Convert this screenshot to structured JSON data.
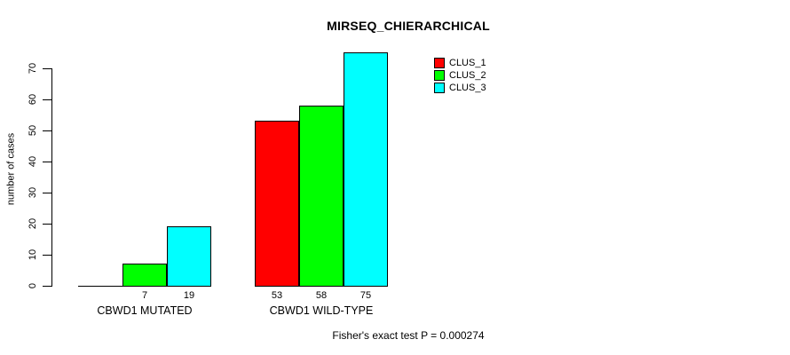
{
  "title": "MIRSEQ_CHIERARCHICAL",
  "footer": "Fisher's exact test P = 0.000274",
  "chart_data": {
    "type": "bar",
    "title": "MIRSEQ_CHIERARCHICAL",
    "xlabel": "",
    "ylabel": "number of cases",
    "ylim": [
      0,
      70
    ],
    "yticks": [
      0,
      10,
      20,
      30,
      40,
      50,
      60,
      70
    ],
    "grid": false,
    "legend_position": "top-right-outside",
    "categories": [
      "CBWD1 MUTATED",
      "CBWD1 WILD-TYPE"
    ],
    "series": [
      {
        "name": "CLUS_1",
        "color": "#ff0000",
        "values": [
          0,
          53
        ]
      },
      {
        "name": "CLUS_2",
        "color": "#00ff00",
        "values": [
          7,
          58
        ]
      },
      {
        "name": "CLUS_3",
        "color": "#00ffff",
        "values": [
          19,
          75
        ]
      }
    ],
    "bar_value_labels": [
      [
        "",
        "7",
        "19"
      ],
      [
        "53",
        "58",
        "75"
      ]
    ],
    "annotation": "Fisher's exact test P = 0.000274"
  },
  "colors": {
    "background": "#ffffff",
    "bar_border": "#000000",
    "axis": "#000000",
    "text": "#000000"
  }
}
